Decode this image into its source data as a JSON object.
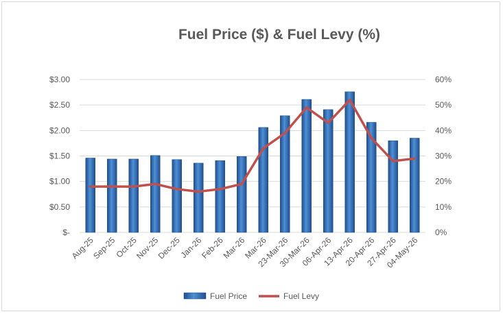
{
  "chart_data": {
    "type": "bar",
    "title": "Fuel Price ($) & Fuel Levy (%)",
    "categories": [
      "Aug-25",
      "Sep-25",
      "Oct-25",
      "Nov-25",
      "Dec-25",
      "Jan-26",
      "Feb-26",
      "Mar-26",
      "Mar-26",
      "23-Mar-26",
      "30-Mar-26",
      "06-Apr-26",
      "13-Apr-26",
      "20-Apr-26",
      "27-Apr-26",
      "04-May-26"
    ],
    "series": [
      {
        "name": "Fuel Price",
        "type": "bar",
        "axis": "left",
        "color": "#2e75b6",
        "values": [
          1.46,
          1.44,
          1.44,
          1.51,
          1.43,
          1.36,
          1.41,
          1.49,
          2.06,
          2.29,
          2.61,
          2.41,
          2.76,
          2.16,
          1.8,
          1.85
        ]
      },
      {
        "name": "Fuel Levy",
        "type": "line",
        "axis": "right",
        "color": "#c0504d",
        "values": [
          18,
          18,
          18,
          19,
          17,
          16,
          17,
          19,
          33,
          39,
          49,
          43,
          52,
          37,
          28,
          29
        ]
      }
    ],
    "y_left": {
      "min": 0,
      "max": 3,
      "step": 0.5,
      "tick_labels": [
        "$-",
        "$0.50",
        "$1.00",
        "$1.50",
        "$2.00",
        "$2.50",
        "$3.00"
      ]
    },
    "y_right": {
      "min": 0,
      "max": 60,
      "step": 10,
      "tick_labels": [
        "0%",
        "10%",
        "20%",
        "30%",
        "40%",
        "50%",
        "60%"
      ]
    },
    "grid": true,
    "legend": {
      "position": "bottom",
      "entries": [
        "Fuel Price",
        "Fuel Levy"
      ]
    }
  }
}
